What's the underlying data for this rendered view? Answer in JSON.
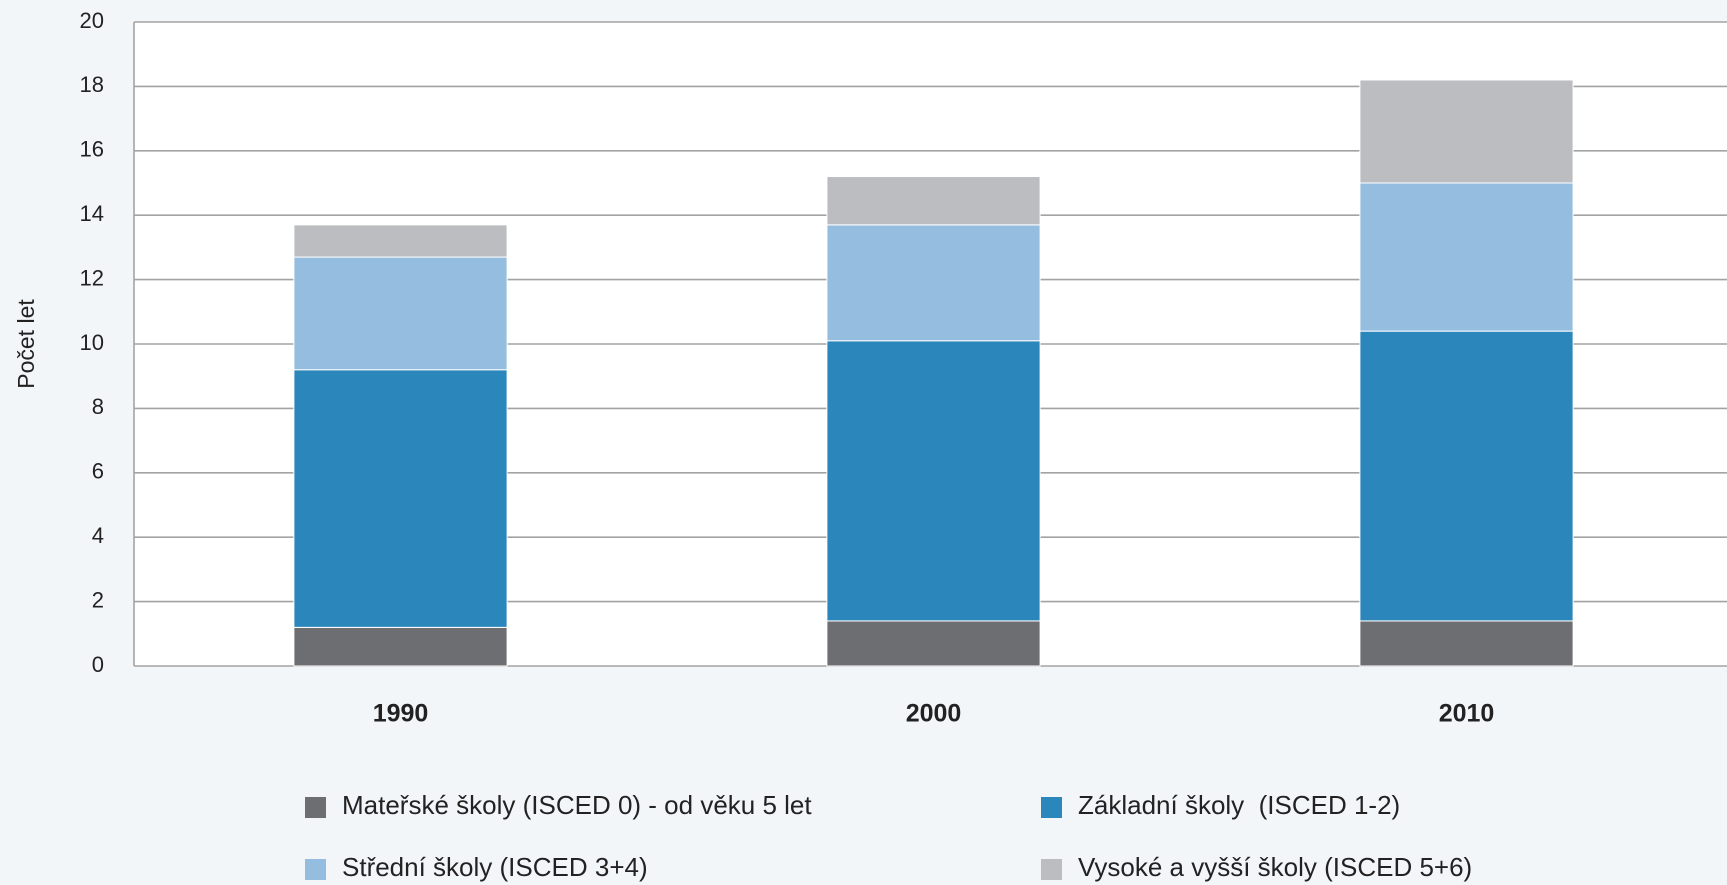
{
  "chart_data": {
    "type": "stacked_bar",
    "y_label": "Počet let",
    "categories": [
      "1990",
      "2000",
      "2010"
    ],
    "series": [
      {
        "name": "Mateřské školy (ISCED 0) - od věku 5 let",
        "color": "#6d6e71",
        "values": [
          1.2,
          1.4,
          1.4
        ]
      },
      {
        "name": "Základní školy  (ISCED 1-2)",
        "color": "#2a86bb",
        "values": [
          8.0,
          8.7,
          9.0
        ]
      },
      {
        "name": "Střední školy (ISCED 3+4)",
        "color": "#95bddf",
        "values": [
          3.5,
          3.6,
          4.6
        ]
      },
      {
        "name": "Vysoké a vyšší školy (ISCED 5+6)",
        "color": "#bcbdc0",
        "values": [
          1.0,
          1.5,
          3.2
        ]
      }
    ],
    "ylim": [
      0,
      20
    ],
    "yticks": [
      0,
      2,
      4,
      6,
      8,
      10,
      12,
      14,
      16,
      18,
      20
    ],
    "grid": true
  }
}
